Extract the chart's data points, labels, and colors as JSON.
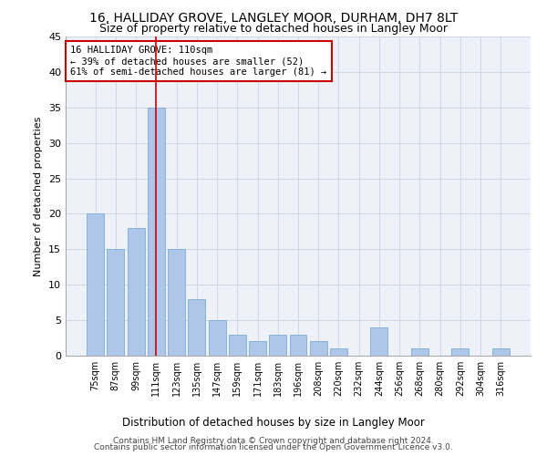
{
  "title": "16, HALLIDAY GROVE, LANGLEY MOOR, DURHAM, DH7 8LT",
  "subtitle": "Size of property relative to detached houses in Langley Moor",
  "xlabel": "Distribution of detached houses by size in Langley Moor",
  "ylabel": "Number of detached properties",
  "categories": [
    "75sqm",
    "87sqm",
    "99sqm",
    "111sqm",
    "123sqm",
    "135sqm",
    "147sqm",
    "159sqm",
    "171sqm",
    "183sqm",
    "196sqm",
    "208sqm",
    "220sqm",
    "232sqm",
    "244sqm",
    "256sqm",
    "268sqm",
    "280sqm",
    "292sqm",
    "304sqm",
    "316sqm"
  ],
  "values": [
    20,
    15,
    18,
    35,
    15,
    8,
    5,
    3,
    2,
    3,
    3,
    2,
    1,
    0,
    4,
    0,
    1,
    0,
    1,
    0,
    1
  ],
  "bar_color": "#aec6e8",
  "bar_edge_color": "#7aadd4",
  "vline_x_index": 3,
  "vline_color": "#cc0000",
  "annotation_text": "16 HALLIDAY GROVE: 110sqm\n← 39% of detached houses are smaller (52)\n61% of semi-detached houses are larger (81) →",
  "annotation_box_color": "#ffffff",
  "annotation_box_edge_color": "#cc0000",
  "ylim": [
    0,
    45
  ],
  "yticks": [
    0,
    5,
    10,
    15,
    20,
    25,
    30,
    35,
    40,
    45
  ],
  "grid_color": "#d0d8e8",
  "background_color": "#eef2f8",
  "footer1": "Contains HM Land Registry data © Crown copyright and database right 2024.",
  "footer2": "Contains public sector information licensed under the Open Government Licence v3.0.",
  "title_fontsize": 10,
  "subtitle_fontsize": 9
}
